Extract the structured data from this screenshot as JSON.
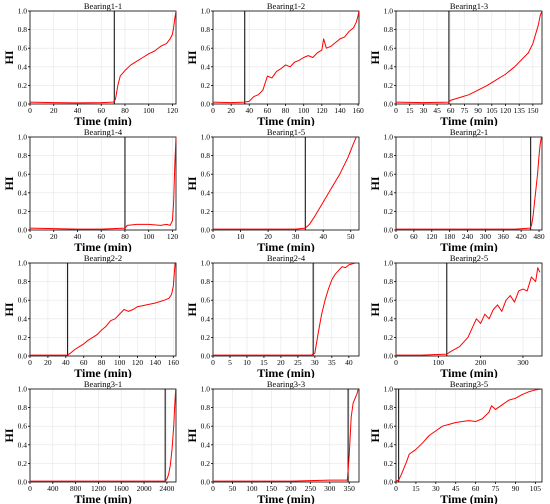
{
  "colors": {
    "hi_line": "#ff0000",
    "change_line": "#000000",
    "grid": "#e6e6e6",
    "axis": "#000000"
  },
  "chart_data": [
    {
      "type": "line",
      "title": "Bearing1-1",
      "xlabel": "Time (min)",
      "ylabel": "HI",
      "xlim": [
        0,
        123
      ],
      "ylim": [
        0,
        1
      ],
      "x_ticks": [
        "0",
        "20",
        "40",
        "60",
        "80",
        "100",
        "120"
      ],
      "x_tick_values": [
        0,
        20,
        40,
        60,
        80,
        100,
        120
      ],
      "y_ticks": [
        "0.0",
        "0.2",
        "0.4",
        "0.6",
        "0.8",
        "1.0"
      ],
      "grid": true,
      "change_point": 71,
      "series": [
        {
          "x": [
            0,
            20,
            40,
            60,
            70,
            72,
            74,
            76,
            80,
            85,
            90,
            95,
            100,
            105,
            110,
            115,
            118,
            120,
            121,
            122,
            123
          ],
          "y": [
            0.02,
            0.015,
            0.012,
            0.015,
            0.02,
            0.05,
            0.2,
            0.3,
            0.36,
            0.42,
            0.46,
            0.5,
            0.54,
            0.57,
            0.62,
            0.65,
            0.7,
            0.75,
            0.82,
            0.92,
            1.0
          ]
        }
      ]
    },
    {
      "type": "line",
      "title": "Bearing1-2",
      "xlabel": "Time (min)",
      "ylabel": "HI",
      "xlim": [
        0,
        161
      ],
      "ylim": [
        0,
        1
      ],
      "x_ticks": [
        "0",
        "20",
        "40",
        "60",
        "80",
        "100",
        "120",
        "140",
        "160"
      ],
      "x_tick_values": [
        0,
        20,
        40,
        60,
        80,
        100,
        120,
        140,
        160
      ],
      "y_ticks": [
        "0.0",
        "0.2",
        "0.4",
        "0.6",
        "0.8",
        "1.0"
      ],
      "grid": true,
      "change_point": 35,
      "series": [
        {
          "x": [
            0,
            20,
            35,
            40,
            45,
            50,
            55,
            60,
            65,
            70,
            75,
            80,
            85,
            90,
            95,
            100,
            105,
            110,
            115,
            120,
            122,
            125,
            130,
            135,
            140,
            145,
            150,
            155,
            158,
            160,
            161
          ],
          "y": [
            0.02,
            0.015,
            0.02,
            0.03,
            0.08,
            0.1,
            0.15,
            0.3,
            0.28,
            0.35,
            0.38,
            0.42,
            0.4,
            0.45,
            0.47,
            0.5,
            0.52,
            0.5,
            0.55,
            0.58,
            0.7,
            0.6,
            0.62,
            0.66,
            0.7,
            0.72,
            0.78,
            0.82,
            0.88,
            0.95,
            1.0
          ]
        }
      ]
    },
    {
      "type": "line",
      "title": "Bearing1-3",
      "xlabel": "Time (min)",
      "ylabel": "HI",
      "xlim": [
        0,
        160
      ],
      "ylim": [
        0,
        1
      ],
      "x_ticks": [
        "0",
        "15",
        "30",
        "45",
        "60",
        "75",
        "90",
        "105",
        "120",
        "135",
        "150"
      ],
      "x_tick_values": [
        0,
        15,
        30,
        45,
        60,
        75,
        90,
        105,
        120,
        135,
        150
      ],
      "y_ticks": [
        "0.0",
        "0.2",
        "0.4",
        "0.6",
        "0.8",
        "1.0"
      ],
      "grid": true,
      "change_point": 58,
      "series": [
        {
          "x": [
            0,
            30,
            58,
            60,
            70,
            80,
            90,
            100,
            110,
            120,
            130,
            140,
            145,
            150,
            153,
            156,
            158,
            160
          ],
          "y": [
            0.02,
            0.015,
            0.02,
            0.04,
            0.07,
            0.1,
            0.15,
            0.2,
            0.26,
            0.32,
            0.4,
            0.5,
            0.55,
            0.65,
            0.75,
            0.85,
            0.95,
            1.0
          ]
        }
      ]
    },
    {
      "type": "line",
      "title": "Bearing1-4",
      "xlabel": "Time (min)",
      "ylabel": "HI",
      "xlim": [
        0,
        123
      ],
      "ylim": [
        0,
        1
      ],
      "x_ticks": [
        "0",
        "20",
        "40",
        "60",
        "80",
        "100",
        "120"
      ],
      "x_tick_values": [
        0,
        20,
        40,
        60,
        80,
        100,
        120
      ],
      "y_ticks": [
        "0.0",
        "0.2",
        "0.4",
        "0.6",
        "0.8",
        "1.0"
      ],
      "grid": true,
      "change_point": 80,
      "series": [
        {
          "x": [
            0,
            20,
            40,
            60,
            80,
            82,
            90,
            100,
            110,
            115,
            118,
            120,
            121,
            122,
            123
          ],
          "y": [
            0.02,
            0.015,
            0.01,
            0.01,
            0.02,
            0.05,
            0.06,
            0.06,
            0.05,
            0.06,
            0.05,
            0.1,
            0.3,
            0.7,
            1.0
          ]
        }
      ]
    },
    {
      "type": "line",
      "title": "Bearing1-5",
      "xlabel": "Time (min)",
      "ylabel": "HI",
      "xlim": [
        0,
        53
      ],
      "ylim": [
        0,
        1
      ],
      "x_ticks": [
        "0",
        "10",
        "20",
        "30",
        "40",
        "50"
      ],
      "x_tick_values": [
        0,
        10,
        20,
        30,
        40,
        50
      ],
      "y_ticks": [
        "0.0",
        "0.2",
        "0.4",
        "0.6",
        "0.8",
        "1.0"
      ],
      "grid": true,
      "change_point": 33.5,
      "series": [
        {
          "x": [
            0,
            10,
            20,
            30,
            33.5,
            35,
            37,
            40,
            43,
            46,
            49,
            51,
            52
          ],
          "y": [
            0.01,
            0.01,
            0.01,
            0.01,
            0.02,
            0.06,
            0.15,
            0.3,
            0.45,
            0.6,
            0.78,
            0.93,
            1.0
          ]
        }
      ]
    },
    {
      "type": "line",
      "title": "Bearing2-1",
      "xlabel": "Time (min)",
      "ylabel": "HI",
      "xlim": [
        0,
        490
      ],
      "ylim": [
        0,
        1
      ],
      "x_ticks": [
        "0",
        "60",
        "120",
        "180",
        "240",
        "300",
        "360",
        "420",
        "480"
      ],
      "x_tick_values": [
        0,
        60,
        120,
        180,
        240,
        300,
        360,
        420,
        480
      ],
      "y_ticks": [
        "0.0",
        "0.2",
        "0.4",
        "0.6",
        "0.8",
        "1.0"
      ],
      "grid": true,
      "change_point": 452,
      "series": [
        {
          "x": [
            0,
            100,
            200,
            300,
            400,
            450,
            455,
            460,
            465,
            470,
            475,
            480,
            484,
            488
          ],
          "y": [
            0.01,
            0.01,
            0.01,
            0.01,
            0.01,
            0.02,
            0.05,
            0.15,
            0.3,
            0.45,
            0.6,
            0.8,
            0.92,
            1.0
          ]
        }
      ]
    },
    {
      "type": "line",
      "title": "Bearing2-2",
      "xlabel": "Time (min)",
      "ylabel": "HI",
      "xlim": [
        0,
        163
      ],
      "ylim": [
        0,
        1
      ],
      "x_ticks": [
        "0",
        "20",
        "40",
        "60",
        "80",
        "100",
        "120",
        "140",
        "160"
      ],
      "x_tick_values": [
        0,
        20,
        40,
        60,
        80,
        100,
        120,
        140,
        160
      ],
      "y_ticks": [
        "0.0",
        "0.2",
        "0.4",
        "0.6",
        "0.8",
        "1.0"
      ],
      "grid": true,
      "change_point": 42,
      "series": [
        {
          "x": [
            0,
            20,
            42,
            45,
            50,
            55,
            60,
            65,
            70,
            75,
            80,
            85,
            90,
            95,
            100,
            105,
            110,
            115,
            120,
            130,
            140,
            150,
            155,
            158,
            160,
            162
          ],
          "y": [
            0.01,
            0.01,
            0.01,
            0.03,
            0.07,
            0.1,
            0.13,
            0.17,
            0.2,
            0.23,
            0.28,
            0.32,
            0.38,
            0.4,
            0.45,
            0.5,
            0.48,
            0.5,
            0.53,
            0.55,
            0.57,
            0.6,
            0.62,
            0.66,
            0.75,
            1.0
          ]
        }
      ]
    },
    {
      "type": "line",
      "title": "Bearing2-4",
      "xlabel": "Time (min)",
      "ylabel": "HI",
      "xlim": [
        0,
        43
      ],
      "ylim": [
        0,
        1
      ],
      "x_ticks": [
        "0",
        "5",
        "10",
        "15",
        "20",
        "25",
        "30",
        "35",
        "40"
      ],
      "x_tick_values": [
        0,
        5,
        10,
        15,
        20,
        25,
        30,
        35,
        40
      ],
      "y_ticks": [
        "0.0",
        "0.2",
        "0.4",
        "0.6",
        "0.8",
        "1.0"
      ],
      "grid": true,
      "change_point": 29.5,
      "series": [
        {
          "x": [
            0,
            10,
            20,
            29,
            30,
            31,
            32,
            33,
            34,
            35,
            36,
            37,
            38,
            39,
            40,
            41,
            42
          ],
          "y": [
            0.01,
            0.01,
            0.01,
            0.01,
            0.03,
            0.25,
            0.45,
            0.6,
            0.72,
            0.82,
            0.88,
            0.92,
            0.96,
            0.95,
            0.98,
            0.99,
            1.0
          ]
        }
      ]
    },
    {
      "type": "line",
      "title": "Bearing2-5",
      "xlabel": "Time (min)",
      "ylabel": "HI",
      "xlim": [
        0,
        345
      ],
      "ylim": [
        0,
        1
      ],
      "x_ticks": [
        "0",
        "100",
        "200",
        "300"
      ],
      "x_tick_values": [
        0,
        100,
        200,
        300
      ],
      "y_ticks": [
        "0.0",
        "0.2",
        "0.4",
        "0.6",
        "0.8",
        "1.0"
      ],
      "grid": true,
      "change_point": 120,
      "series": [
        {
          "x": [
            0,
            60,
            120,
            130,
            150,
            170,
            180,
            190,
            200,
            210,
            220,
            230,
            240,
            250,
            260,
            270,
            280,
            290,
            300,
            310,
            320,
            330,
            335,
            340
          ],
          "y": [
            0.01,
            0.01,
            0.02,
            0.05,
            0.1,
            0.2,
            0.3,
            0.4,
            0.35,
            0.45,
            0.4,
            0.5,
            0.55,
            0.48,
            0.6,
            0.65,
            0.58,
            0.7,
            0.72,
            0.7,
            0.85,
            0.8,
            0.95,
            0.9
          ]
        }
      ]
    },
    {
      "type": "line",
      "title": "Bearing3-1",
      "xlabel": "Time (min)",
      "ylabel": "HI",
      "xlim": [
        0,
        2560
      ],
      "ylim": [
        0,
        1
      ],
      "x_ticks": [
        "0",
        "400",
        "800",
        "1200",
        "1600",
        "2000",
        "2400"
      ],
      "x_tick_values": [
        0,
        400,
        800,
        1200,
        1600,
        2000,
        2400
      ],
      "y_ticks": [
        "0.0",
        "0.2",
        "0.4",
        "0.6",
        "0.8",
        "1.0"
      ],
      "grid": true,
      "change_point": 2370,
      "series": [
        {
          "x": [
            0,
            800,
            1600,
            2370,
            2400,
            2430,
            2460,
            2490,
            2520,
            2540,
            2555
          ],
          "y": [
            0.01,
            0.01,
            0.01,
            0.01,
            0.03,
            0.08,
            0.18,
            0.35,
            0.6,
            0.85,
            1.0
          ]
        }
      ]
    },
    {
      "type": "line",
      "title": "Bearing3-3",
      "xlabel": "Time (min)",
      "ylabel": "HI",
      "xlim": [
        0,
        375
      ],
      "ylim": [
        0,
        1
      ],
      "x_ticks": [
        "0",
        "50",
        "100",
        "150",
        "200",
        "250",
        "300",
        "350"
      ],
      "x_tick_values": [
        0,
        50,
        100,
        150,
        200,
        250,
        300,
        350
      ],
      "y_ticks": [
        "0.0",
        "0.2",
        "0.4",
        "0.6",
        "0.8",
        "1.0"
      ],
      "grid": true,
      "change_point": 347,
      "series": [
        {
          "x": [
            0,
            100,
            200,
            300,
            345,
            350,
            355,
            360,
            365,
            370,
            373
          ],
          "y": [
            0.01,
            0.01,
            0.01,
            0.02,
            0.02,
            0.3,
            0.7,
            0.85,
            0.9,
            0.95,
            1.0
          ]
        }
      ]
    },
    {
      "type": "line",
      "title": "Bearing3-5",
      "xlabel": "Time (min)",
      "ylabel": "HI",
      "xlim": [
        0,
        110
      ],
      "ylim": [
        0,
        1
      ],
      "x_ticks": [
        "0",
        "15",
        "30",
        "45",
        "60",
        "75",
        "90",
        "105"
      ],
      "x_tick_values": [
        0,
        15,
        30,
        45,
        60,
        75,
        90,
        105
      ],
      "y_ticks": [
        "0.0",
        "0.2",
        "0.4",
        "0.6",
        "0.8",
        "1.0"
      ],
      "grid": true,
      "change_point": 2,
      "series": [
        {
          "x": [
            0,
            2,
            4,
            6,
            8,
            10,
            15,
            20,
            25,
            30,
            35,
            40,
            45,
            50,
            55,
            60,
            65,
            70,
            72,
            75,
            80,
            85,
            90,
            95,
            100,
            105,
            110
          ],
          "y": [
            0.01,
            0.02,
            0.08,
            0.15,
            0.22,
            0.3,
            0.35,
            0.42,
            0.5,
            0.55,
            0.6,
            0.62,
            0.64,
            0.65,
            0.66,
            0.65,
            0.68,
            0.75,
            0.82,
            0.78,
            0.83,
            0.88,
            0.9,
            0.94,
            0.97,
            0.99,
            1.0
          ]
        }
      ]
    }
  ]
}
